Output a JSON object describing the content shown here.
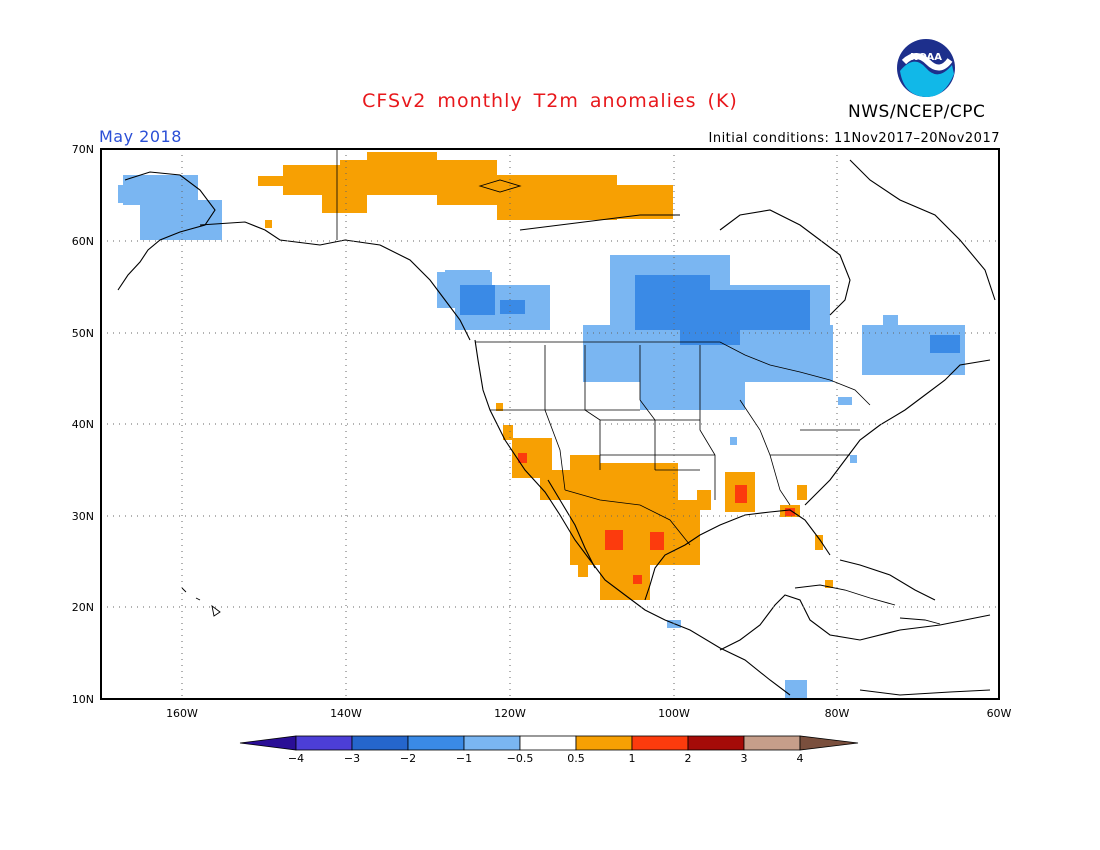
{
  "header": {
    "title": "CFSv2 monthly T2m anomalies (K)",
    "month": "May 2018",
    "initial_conditions": "Initial conditions: 11Nov2017–20Nov2017",
    "organization": "NWS/NCEP/CPC",
    "logo_text": "NOAA",
    "logo_icon": "noaa-logo-icon"
  },
  "map": {
    "lat_range": [
      10,
      70
    ],
    "lon_range": [
      -170,
      -60
    ],
    "lat_labels": [
      "70N",
      "60N",
      "50N",
      "40N",
      "30N",
      "20N",
      "10N"
    ],
    "lon_labels": [
      "160W",
      "140W",
      "120W",
      "100W",
      "80W",
      "60W"
    ],
    "grid": true,
    "anomaly_regions": [
      {
        "label": "Alaska",
        "category": "-0.5 to -1"
      },
      {
        "label": "Yukon / NWT",
        "category": "0.5 to 1"
      },
      {
        "label": "British Columbia / Pacific NW",
        "category": "-0.5 to -2"
      },
      {
        "label": "Northern Plains / Great Lakes / Quebec",
        "category": "-0.5 to -2"
      },
      {
        "label": "US Southwest / Mexico",
        "category": "0.5 to 2"
      },
      {
        "label": "Gulf Coast / Florida",
        "category": "0.5 to 2"
      }
    ]
  },
  "colorbar": {
    "tick_labels": [
      "−4",
      "−3",
      "−2",
      "−1",
      "−0.5",
      "0.5",
      "1",
      "2",
      "3",
      "4"
    ],
    "colors": [
      "#2a0e96",
      "#4c3ed6",
      "#2566cc",
      "#3a8ae6",
      "#7ab6f2",
      "#ffffff",
      "#f7a003",
      "#fc3b0d",
      "#a50b08",
      "#c69e8a",
      "#7a4f3d"
    ]
  }
}
